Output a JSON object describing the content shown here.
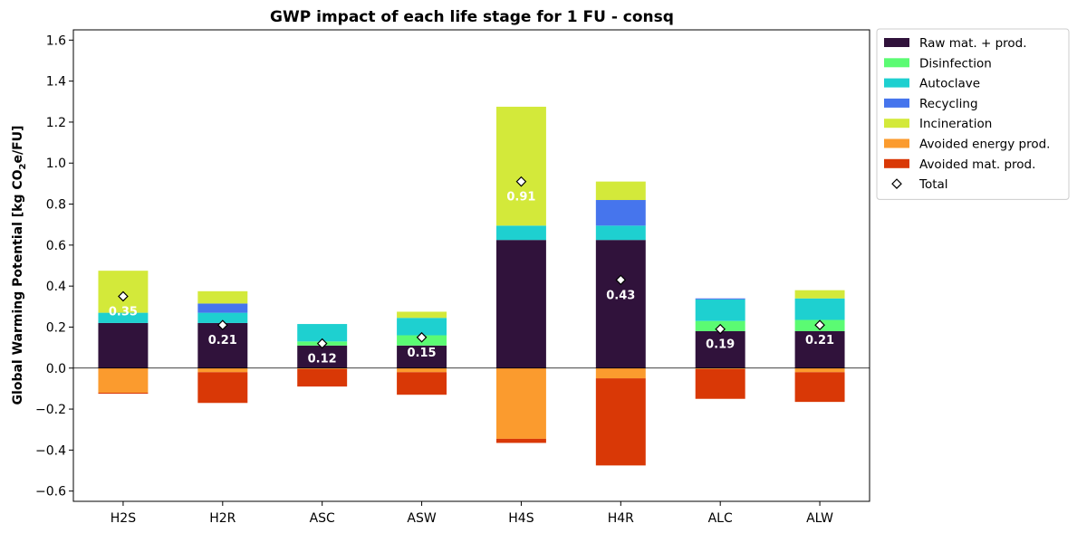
{
  "chart_data": {
    "type": "bar",
    "stacked": true,
    "title": "GWP impact of each life stage for 1 FU - consq",
    "ylabel_pre": "Global Warming Potential [kg CO",
    "ylabel_sub": "2",
    "ylabel_post": "e/FU]",
    "ylim": [
      -0.65,
      1.65
    ],
    "yticks": [
      "−0.6",
      "−0.4",
      "−0.2",
      "0.0",
      "0.2",
      "0.4",
      "0.6",
      "0.8",
      "1.0",
      "1.2",
      "1.4",
      "1.6"
    ],
    "ytick_values": [
      -0.6,
      -0.4,
      -0.2,
      0.0,
      0.2,
      0.4,
      0.6,
      0.8,
      1.0,
      1.2,
      1.4,
      1.6
    ],
    "categories": [
      "H2S",
      "H2R",
      "ASC",
      "ASW",
      "H4S",
      "H4R",
      "ALC",
      "ALW"
    ],
    "series": [
      {
        "name": "Raw mat. + prod.",
        "color": "#30123b",
        "values": [
          0.22,
          0.22,
          0.11,
          0.11,
          0.625,
          0.625,
          0.18,
          0.18
        ]
      },
      {
        "name": "Disinfection",
        "color": "#5bfb73",
        "values": [
          0.0,
          0.0,
          0.02,
          0.05,
          0.0,
          0.0,
          0.05,
          0.055
        ]
      },
      {
        "name": "Autoclave",
        "color": "#1ed0d0",
        "values": [
          0.05,
          0.05,
          0.085,
          0.085,
          0.07,
          0.07,
          0.105,
          0.105
        ]
      },
      {
        "name": "Recycling",
        "color": "#4675ed",
        "values": [
          0.0,
          0.045,
          0.0,
          0.0,
          0.0,
          0.125,
          0.005,
          0.0
        ]
      },
      {
        "name": "Incineration",
        "color": "#d3e93a",
        "values": [
          0.205,
          0.06,
          0.0,
          0.03,
          0.58,
          0.09,
          0.0,
          0.04
        ]
      },
      {
        "name": "Avoided energy prod.",
        "color": "#fb9b2e",
        "values": [
          -0.12,
          -0.02,
          -0.005,
          -0.02,
          -0.345,
          -0.05,
          -0.005,
          -0.02
        ]
      },
      {
        "name": "Avoided mat. prod.",
        "color": "#d93806",
        "values": [
          -0.005,
          -0.15,
          -0.085,
          -0.11,
          -0.02,
          -0.425,
          -0.145,
          -0.145
        ]
      }
    ],
    "total": {
      "name": "Total",
      "values": [
        0.35,
        0.21,
        0.12,
        0.15,
        0.91,
        0.43,
        0.19,
        0.21
      ],
      "labels": [
        "0.35",
        "0.21",
        "0.12",
        "0.15",
        "0.91",
        "0.43",
        "0.19",
        "0.21"
      ]
    },
    "legend_position": "outside-top-right",
    "grid": false
  }
}
